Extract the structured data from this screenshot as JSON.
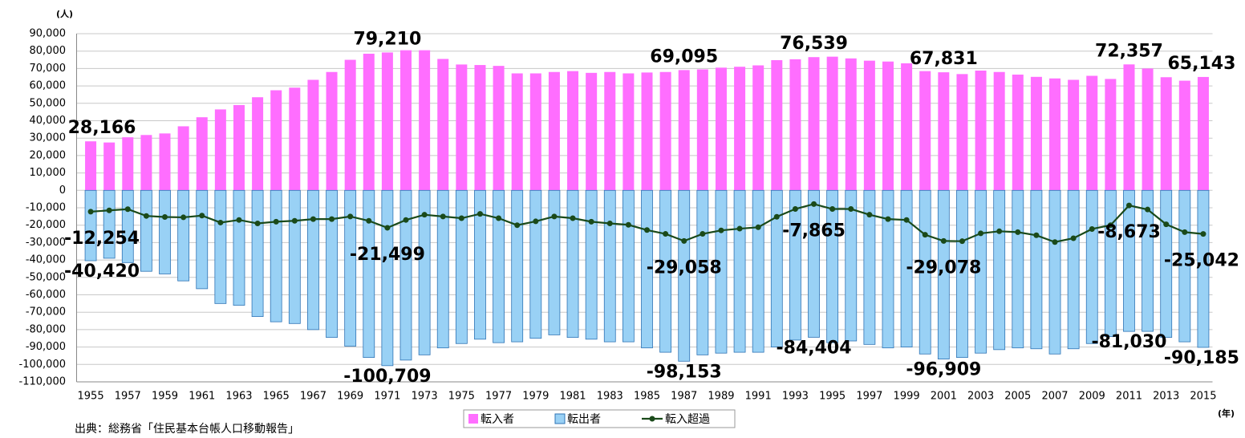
{
  "chart_data": {
    "type": "bar-line",
    "y_axis_label": "(人)",
    "x_axis_label": "(年)",
    "source": "出典：総務省「住民基本台帳人口移動報告」",
    "categories": [
      "1955",
      null,
      "1957",
      null,
      "1959",
      null,
      "1961",
      null,
      "1963",
      null,
      "1965",
      null,
      "1967",
      null,
      "1969",
      null,
      "1971",
      null,
      "1973",
      null,
      "1975",
      null,
      "1977",
      null,
      "1979",
      null,
      "1981",
      null,
      "1983",
      null,
      "1985",
      null,
      "1987",
      null,
      "1989",
      null,
      "1991",
      null,
      "1993",
      null,
      "1995",
      null,
      "1997",
      null,
      "1999",
      null,
      "2001",
      null,
      "2003",
      null,
      "2005",
      null,
      "2007",
      null,
      "2009",
      null,
      "2011",
      null,
      "2013",
      null,
      "2015"
    ],
    "ylim": [
      -110000,
      90000
    ],
    "yticks": [
      {
        "value": 90000,
        "label": "90,000"
      },
      {
        "value": 80000,
        "label": "80,000"
      },
      {
        "value": 70000,
        "label": "70,000"
      },
      {
        "value": 60000,
        "label": "60,000"
      },
      {
        "value": 50000,
        "label": "50,000"
      },
      {
        "value": 40000,
        "label": "40,000"
      },
      {
        "value": 30000,
        "label": "30,000"
      },
      {
        "value": 20000,
        "label": "20,000"
      },
      {
        "value": 10000,
        "label": "10,000"
      },
      0,
      {
        "value": -10000,
        "label": "-10,000"
      },
      {
        "value": -20000,
        "label": "-20,000"
      },
      {
        "value": -30000,
        "label": "-30,000"
      },
      {
        "value": -40000,
        "label": "-40,000"
      },
      {
        "value": -50000,
        "label": "-50,000"
      },
      {
        "value": -60000,
        "label": "-60,000"
      },
      {
        "value": -70000,
        "label": "-70,000"
      },
      {
        "value": -80000,
        "label": "-80,000"
      },
      {
        "value": -90000,
        "label": "-90,000"
      },
      {
        "value": -100000,
        "label": "-100,000"
      },
      {
        "value": -110000,
        "label": "-110,000"
      }
    ],
    "grid": true,
    "legend": "bottom",
    "series": [
      {
        "name": "転入者",
        "kind": "bar",
        "color": "#ff6eff",
        "values": [
          28166,
          27500,
          30500,
          31800,
          32700,
          36800,
          42000,
          46500,
          49000,
          53500,
          57500,
          59000,
          63500,
          68000,
          75000,
          78500,
          79210,
          80500,
          80500,
          75500,
          72300,
          72000,
          71500,
          67200,
          67200,
          68000,
          68500,
          67500,
          68000,
          67200,
          67700,
          68000,
          69095,
          69500,
          70500,
          71000,
          71800,
          74800,
          75300,
          76539,
          76800,
          75800,
          74500,
          74000,
          73000,
          68500,
          67831,
          66800,
          68800,
          68000,
          66500,
          65200,
          64300,
          63500,
          65800,
          64000,
          72357,
          70000,
          65000,
          63000,
          65143
        ],
        "value_labels": [
          "28,166",
          null,
          null,
          null,
          null,
          null,
          null,
          null,
          null,
          null,
          null,
          null,
          null,
          null,
          null,
          null,
          "79,210",
          null,
          null,
          null,
          null,
          null,
          null,
          null,
          null,
          null,
          null,
          null,
          null,
          null,
          null,
          null,
          "69,095",
          null,
          null,
          null,
          null,
          null,
          null,
          "76,539",
          null,
          null,
          null,
          null,
          null,
          null,
          "67,831",
          null,
          null,
          null,
          null,
          null,
          null,
          null,
          null,
          null,
          "72,357",
          null,
          null,
          null,
          "65,143"
        ]
      },
      {
        "name": "転出者",
        "kind": "bar",
        "color": "#99d1f5",
        "values": [
          -40420,
          -39000,
          -41500,
          -46500,
          -48000,
          -52000,
          -56500,
          -65000,
          -66000,
          -72500,
          -75500,
          -76500,
          -80000,
          -84500,
          -89500,
          -96000,
          -100709,
          -97500,
          -94500,
          -90500,
          -88000,
          -85500,
          -87500,
          -87000,
          -85000,
          -83000,
          -84500,
          -85500,
          -87000,
          -87000,
          -90500,
          -93000,
          -98153,
          -94500,
          -93500,
          -93000,
          -93000,
          -90000,
          -86000,
          -84404,
          -87500,
          -86500,
          -88500,
          -90500,
          -90000,
          -94000,
          -96909,
          -96000,
          -93500,
          -91500,
          -90500,
          -91000,
          -94000,
          -91000,
          -88000,
          -84000,
          -81030,
          -81000,
          -84500,
          -87000,
          -90185
        ],
        "value_labels": [
          "-40,420",
          null,
          null,
          null,
          null,
          null,
          null,
          null,
          null,
          null,
          null,
          null,
          null,
          null,
          null,
          null,
          "-100,709",
          null,
          null,
          null,
          null,
          null,
          null,
          null,
          null,
          null,
          null,
          null,
          null,
          null,
          null,
          null,
          "-98,153",
          null,
          null,
          null,
          null,
          null,
          null,
          "-84,404",
          null,
          null,
          null,
          null,
          null,
          null,
          "-96,909",
          null,
          null,
          null,
          null,
          null,
          null,
          null,
          null,
          null,
          "-81,030",
          null,
          null,
          null,
          "-90,185"
        ]
      },
      {
        "name": "転入超過",
        "kind": "line",
        "color": "#1a4a1a",
        "values": [
          -12254,
          -11500,
          -10800,
          -14700,
          -15300,
          -15500,
          -14500,
          -18500,
          -17000,
          -19000,
          -18000,
          -17500,
          -16500,
          -16500,
          -15000,
          -17500,
          -21499,
          -17000,
          -14000,
          -15000,
          -16000,
          -13500,
          -16000,
          -20000,
          -17800,
          -15000,
          -16000,
          -18000,
          -19000,
          -19800,
          -22800,
          -25000,
          -29058,
          -25000,
          -23000,
          -22000,
          -21200,
          -15200,
          -10700,
          -7865,
          -10700,
          -10700,
          -14000,
          -16500,
          -17000,
          -25500,
          -29078,
          -29200,
          -24700,
          -23500,
          -24000,
          -25800,
          -29700,
          -27500,
          -22200,
          -20000,
          -8673,
          -11000,
          -19500,
          -24000,
          -25042
        ],
        "value_labels": [
          "-12,254",
          null,
          null,
          null,
          null,
          null,
          null,
          null,
          null,
          null,
          null,
          null,
          null,
          null,
          null,
          null,
          "-21,499",
          null,
          null,
          null,
          null,
          null,
          null,
          null,
          null,
          null,
          null,
          null,
          null,
          null,
          null,
          null,
          "-29,058",
          null,
          null,
          null,
          null,
          null,
          null,
          "-7,865",
          null,
          null,
          null,
          null,
          null,
          null,
          "-29,078",
          null,
          null,
          null,
          null,
          null,
          null,
          null,
          null,
          null,
          "-8,673",
          null,
          null,
          null,
          "-25,042"
        ]
      }
    ]
  }
}
